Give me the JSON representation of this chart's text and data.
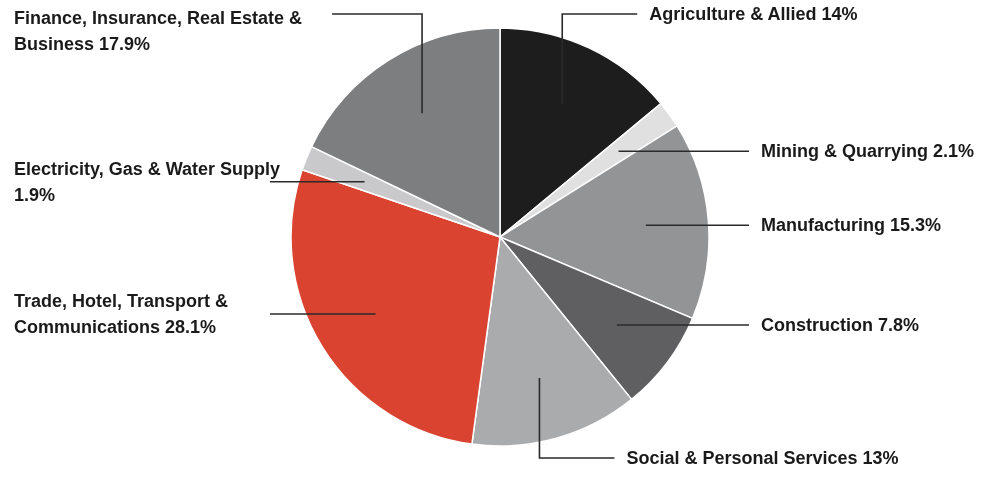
{
  "chart_data": {
    "type": "pie",
    "categories": [
      "Agriculture & Allied",
      "Mining & Quarrying",
      "Manufacturing",
      "Construction",
      "Social & Personal Services",
      "Trade, Hotel, Transport & Communications",
      "Electricity, Gas & Water Supply",
      "Finance, Insurance, Real Estate & Business"
    ],
    "values": [
      14,
      2.1,
      15.3,
      7.8,
      13,
      28.1,
      1.9,
      17.9
    ],
    "value_labels": [
      "14%",
      "2.1%",
      "15.3%",
      "7.8%",
      "13%",
      "28.1%",
      "1.9%",
      "17.9%"
    ],
    "colors": [
      "#1d1d1d",
      "#e0e0e0",
      "#939496",
      "#5f5f61",
      "#aaabad",
      "#d9432f",
      "#c9c9cb",
      "#7d7e80"
    ]
  }
}
